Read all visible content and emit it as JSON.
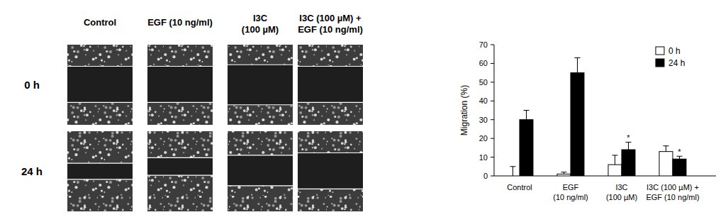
{
  "panels": {
    "columns": [
      "Control",
      "EGF (10 ng/ml)",
      "I3C\n(100 µM)",
      "I3C (100 µM) +\nEGF (10 ng/ml)"
    ],
    "rows": [
      "0 h",
      "24 h"
    ]
  },
  "chart_data": {
    "type": "bar",
    "y_label": "Migration (%)",
    "categories": [
      "Control",
      "EGF\n(10 ng/ml)",
      "I3C\n(100 µM)",
      "I3C (100 µM) +\nEGF (10 ng/ml)"
    ],
    "series": [
      {
        "name": "0 h",
        "color": "#ffffff",
        "values": [
          0,
          1,
          6,
          13
        ],
        "errors": [
          5,
          1,
          5,
          3
        ]
      },
      {
        "name": "24 h",
        "color": "#000000",
        "values": [
          30,
          55,
          14,
          9
        ],
        "errors": [
          5,
          8,
          4,
          1.5
        ]
      }
    ],
    "annotations": [
      {
        "text": "*",
        "category": 2,
        "series": 1
      },
      {
        "text": "*",
        "category": 3,
        "series": 1
      }
    ],
    "ylim": [
      0,
      70
    ],
    "yticks": [
      0,
      10,
      20,
      30,
      40,
      50,
      60,
      70
    ],
    "legend": "top-right",
    "grid": false
  }
}
